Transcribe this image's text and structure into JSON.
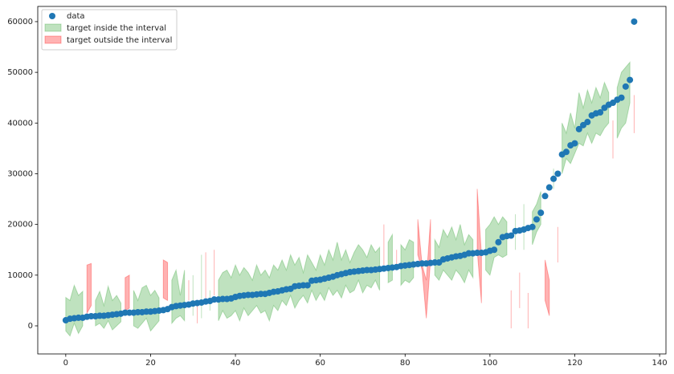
{
  "chart_data": {
    "type": "interval",
    "x": [
      0,
      1,
      2,
      3,
      4,
      5,
      6,
      7,
      8,
      9,
      10,
      11,
      12,
      13,
      14,
      15,
      16,
      17,
      18,
      19,
      20,
      21,
      22,
      23,
      24,
      25,
      26,
      27,
      28,
      29,
      30,
      31,
      32,
      33,
      34,
      35,
      36,
      37,
      38,
      39,
      40,
      41,
      42,
      43,
      44,
      45,
      46,
      47,
      48,
      49,
      50,
      51,
      52,
      53,
      54,
      55,
      56,
      57,
      58,
      59,
      60,
      61,
      62,
      63,
      64,
      65,
      66,
      67,
      68,
      69,
      70,
      71,
      72,
      73,
      74,
      75,
      76,
      77,
      78,
      79,
      80,
      81,
      82,
      83,
      84,
      85,
      86,
      87,
      88,
      89,
      90,
      91,
      92,
      93,
      94,
      95,
      96,
      97,
      98,
      99,
      100,
      101,
      102,
      103,
      104,
      105,
      106,
      107,
      108,
      109,
      110,
      111,
      112,
      113,
      114,
      115,
      116,
      117,
      118,
      119,
      120,
      121,
      122,
      123,
      124,
      125,
      126,
      127,
      128,
      129,
      130,
      131,
      132,
      133,
      134
    ],
    "series": [
      {
        "name": "data",
        "color": "#1f77b4",
        "values": [
          1100,
          1400,
          1500,
          1600,
          1600,
          1800,
          1900,
          1900,
          2000,
          2000,
          2100,
          2200,
          2300,
          2400,
          2600,
          2600,
          2600,
          2700,
          2700,
          2800,
          2800,
          2900,
          3000,
          3100,
          3300,
          3700,
          3900,
          4000,
          4100,
          4200,
          4400,
          4500,
          4600,
          4800,
          4900,
          5200,
          5200,
          5300,
          5300,
          5400,
          5700,
          5900,
          6000,
          6100,
          6100,
          6200,
          6300,
          6300,
          6500,
          6700,
          6800,
          7000,
          7200,
          7300,
          7800,
          7900,
          8000,
          8000,
          8900,
          9000,
          9100,
          9300,
          9500,
          9700,
          10000,
          10200,
          10400,
          10600,
          10700,
          10800,
          10900,
          11000,
          11000,
          11100,
          11200,
          11300,
          11400,
          11500,
          11600,
          11800,
          11900,
          12000,
          12100,
          12200,
          12300,
          12300,
          12400,
          12500,
          12500,
          13100,
          13300,
          13500,
          13700,
          13800,
          14000,
          14300,
          14300,
          14400,
          14400,
          14500,
          14800,
          15000,
          16500,
          17500,
          17700,
          17800,
          18700,
          18800,
          19000,
          19300,
          19500,
          21000,
          22300,
          25600,
          27300,
          29000,
          30000,
          33800,
          34300,
          35600,
          36000,
          38800,
          39600,
          40200,
          41500,
          41900,
          42100,
          43000,
          43600,
          44000,
          44600,
          45000,
          47200,
          48500,
          60000
        ]
      }
    ],
    "lower": [
      -1000,
      -2000,
      500,
      -1500,
      0,
      2500,
      4000,
      0,
      500,
      -500,
      1000,
      -800,
      0,
      800,
      3000,
      3500,
      0,
      -500,
      500,
      1500,
      -1000,
      0,
      1000,
      5500,
      5000,
      500,
      1500,
      2000,
      1000,
      5000,
      2000,
      500,
      1500,
      5500,
      3000,
      6000,
      1000,
      3000,
      1500,
      2000,
      3000,
      1000,
      3500,
      2000,
      3000,
      4000,
      2500,
      3000,
      1000,
      4000,
      3000,
      5000,
      4000,
      6000,
      3500,
      5000,
      6000,
      4500,
      7000,
      5000,
      6500,
      5000,
      7500,
      6000,
      7000,
      5500,
      8000,
      6500,
      7000,
      9000,
      6500,
      8000,
      7500,
      9000,
      7000,
      12000,
      8500,
      9000,
      12000,
      8000,
      9000,
      8500,
      9500,
      14000,
      11000,
      1500,
      13000,
      10000,
      9000,
      11000,
      10000,
      9000,
      11000,
      10000,
      8500,
      11000,
      9500,
      15000,
      4500,
      11000,
      10000,
      13500,
      14000,
      13500,
      14000,
      -500,
      15000,
      3500,
      15000,
      -500,
      16000,
      18500,
      20000,
      5000,
      2000,
      27000,
      12500,
      30000,
      33000,
      32000,
      34000,
      36000,
      35500,
      38000,
      36000,
      38000,
      37500,
      39000,
      40000,
      33000,
      37000,
      39000,
      40000,
      44000,
      38000
    ],
    "upper": [
      5600,
      5000,
      8000,
      6000,
      6800,
      12000,
      12300,
      5000,
      6800,
      4000,
      7800,
      5000,
      6000,
      4500,
      9500,
      10000,
      7000,
      5000,
      7500,
      8000,
      6000,
      7000,
      5500,
      13000,
      12500,
      9000,
      11000,
      6000,
      11000,
      9000,
      10000,
      4000,
      14000,
      14500,
      7000,
      15000,
      9000,
      10500,
      11000,
      9500,
      12000,
      10000,
      11500,
      10500,
      9000,
      12000,
      10000,
      11000,
      9500,
      12000,
      11000,
      13000,
      11000,
      14000,
      12000,
      13500,
      10500,
      14000,
      12500,
      11000,
      14000,
      12000,
      15000,
      13000,
      16500,
      13000,
      15000,
      12500,
      14500,
      16000,
      15000,
      13500,
      16000,
      14500,
      15500,
      20000,
      16500,
      18000,
      15000,
      16000,
      15000,
      17000,
      16500,
      21000,
      12000,
      9000,
      21000,
      17000,
      15500,
      19000,
      17500,
      19500,
      17000,
      20000,
      16000,
      18000,
      17000,
      27000,
      14000,
      19000,
      20000,
      21500,
      20000,
      21500,
      20500,
      7000,
      22000,
      10500,
      24000,
      6500,
      22500,
      24000,
      26500,
      13000,
      9000,
      31000,
      19500,
      40000,
      38000,
      42000,
      39000,
      46000,
      43000,
      46500,
      44000,
      47000,
      45000,
      48000,
      46000,
      40500,
      47000,
      50000,
      51000,
      52000,
      45500
    ],
    "fills": [
      {
        "name": "target inside the interval",
        "color": "#2ca02c",
        "alpha": 0.3
      },
      {
        "name": "target outside the interval",
        "color": "#ff0000",
        "alpha": 0.3
      }
    ],
    "xlim": [
      -6.6,
      141.5
    ],
    "ylim": [
      -5540,
      63000
    ],
    "xticks": [
      0,
      20,
      40,
      60,
      80,
      100,
      120,
      140
    ],
    "yticks": [
      0,
      10000,
      20000,
      30000,
      40000,
      50000,
      60000
    ],
    "legend": "upper left"
  }
}
